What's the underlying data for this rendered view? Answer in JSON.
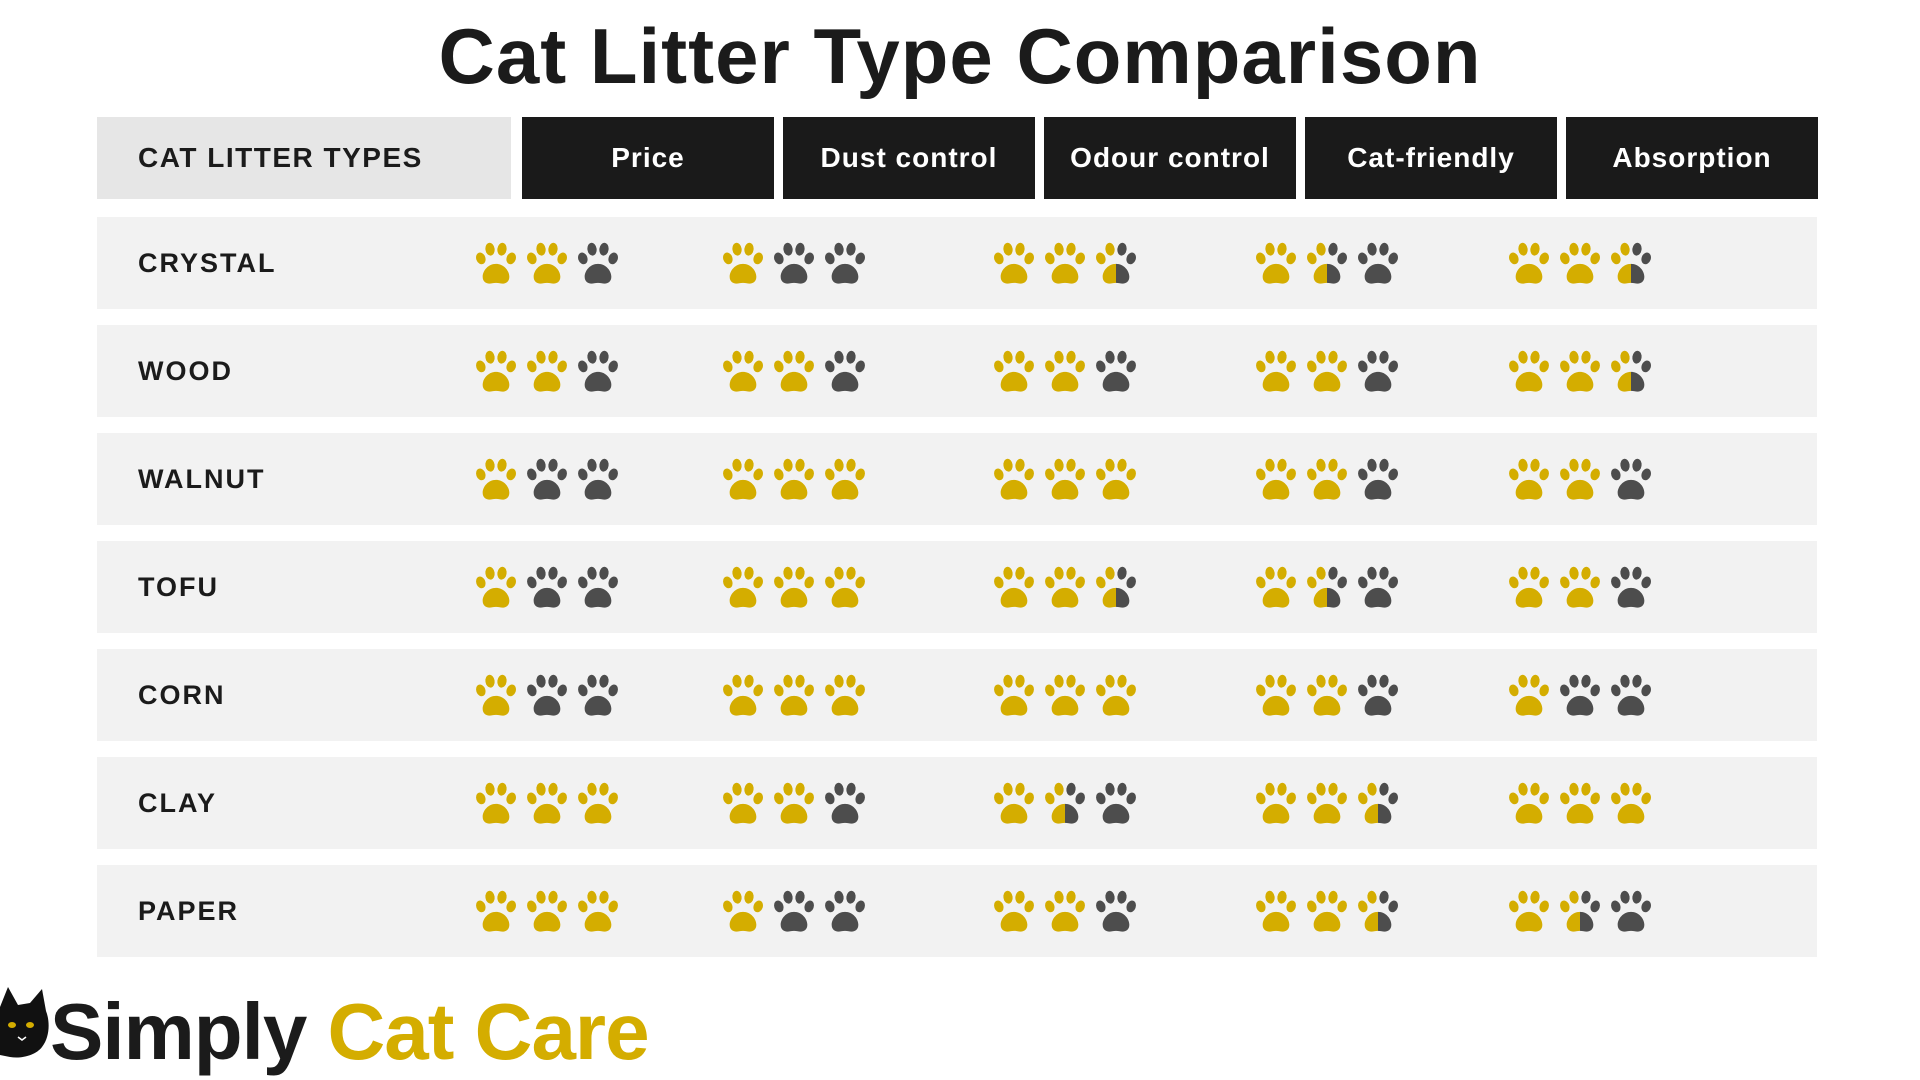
{
  "title": "Cat Litter Type Comparison",
  "colors": {
    "filled": "#d4ad00",
    "empty": "#4d4d4d",
    "header_bg": "#1a1a1a",
    "row_bg": "#f2f2f2"
  },
  "icon": "paw-icon",
  "max_rating": 3,
  "header": {
    "first": "CAT LITTER TYPES",
    "columns": [
      "Price",
      "Dust control",
      "Odour control",
      "Cat-friendly",
      "Absorption"
    ]
  },
  "rows": [
    {
      "label": "CRYSTAL",
      "ratings": [
        2,
        1,
        2.5,
        1.5,
        2.5
      ]
    },
    {
      "label": "WOOD",
      "ratings": [
        2,
        2,
        2,
        2,
        2.5
      ]
    },
    {
      "label": "WALNUT",
      "ratings": [
        1,
        3,
        3,
        2,
        2
      ]
    },
    {
      "label": "TOFU",
      "ratings": [
        1,
        3,
        2.5,
        1.5,
        2
      ]
    },
    {
      "label": "CORN",
      "ratings": [
        1,
        3,
        3,
        2,
        1
      ]
    },
    {
      "label": "CLAY",
      "ratings": [
        3,
        2,
        1.5,
        2.5,
        3
      ]
    },
    {
      "label": "PAPER",
      "ratings": [
        3,
        1,
        2,
        2.5,
        1.5
      ]
    }
  ],
  "logo": {
    "part1": "Simply ",
    "part2": "Cat Care",
    "icon": "black-cat-icon"
  }
}
